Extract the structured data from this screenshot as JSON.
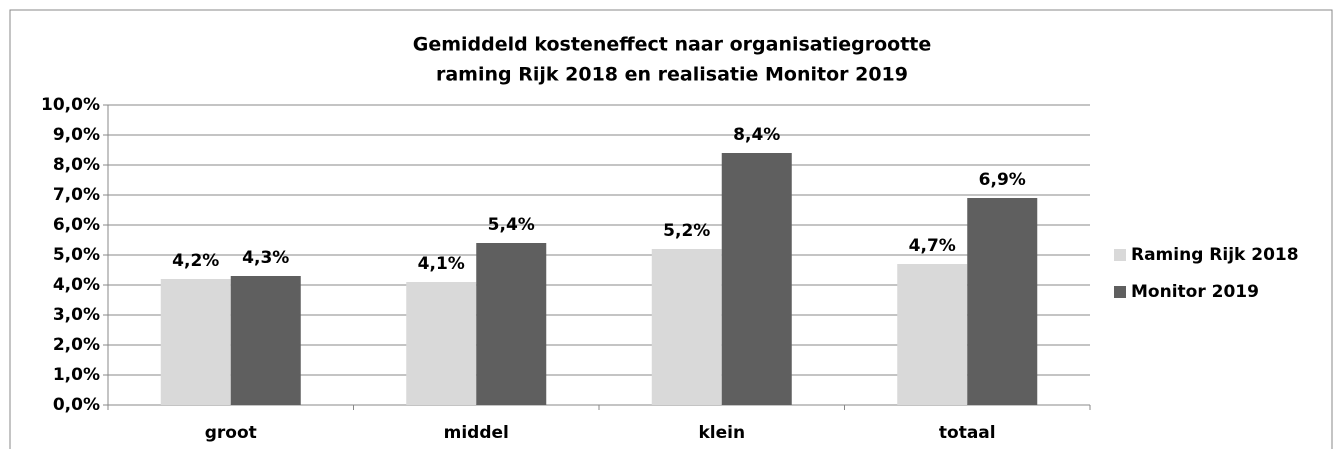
{
  "chart_data": {
    "type": "bar",
    "title": [
      "Gemiddeld kosteneffect naar organisatiegrootte",
      "raming Rijk 2018 en realisatie Monitor 2019"
    ],
    "categories": [
      "groot",
      "middel",
      "klein",
      "totaal"
    ],
    "series": [
      {
        "name": "Raming Rijk 2018",
        "color": "#d9d9d9",
        "values": [
          4.2,
          4.1,
          5.2,
          4.7
        ],
        "value_labels": [
          "4,2%",
          "4,1%",
          "5,2%",
          "4,7%"
        ]
      },
      {
        "name": "Monitor 2019",
        "color": "#5f5f5f",
        "values": [
          4.3,
          5.4,
          8.4,
          6.9
        ],
        "value_labels": [
          "4,3%",
          "5,4%",
          "8,4%",
          "6,9%"
        ]
      }
    ],
    "ylim": [
      0,
      10
    ],
    "yticks": [
      {
        "value": 0,
        "label": "0,0%"
      },
      {
        "value": 1,
        "label": "1,0%"
      },
      {
        "value": 2,
        "label": "2,0%"
      },
      {
        "value": 3,
        "label": "3,0%"
      },
      {
        "value": 4,
        "label": "4,0%"
      },
      {
        "value": 5,
        "label": "5,0%"
      },
      {
        "value": 6,
        "label": "6,0%"
      },
      {
        "value": 7,
        "label": "7,0%"
      },
      {
        "value": 8,
        "label": "8,0%"
      },
      {
        "value": 9,
        "label": "9,0%"
      },
      {
        "value": 10,
        "label": "10,0%"
      }
    ],
    "grid": true,
    "legend": "right"
  }
}
